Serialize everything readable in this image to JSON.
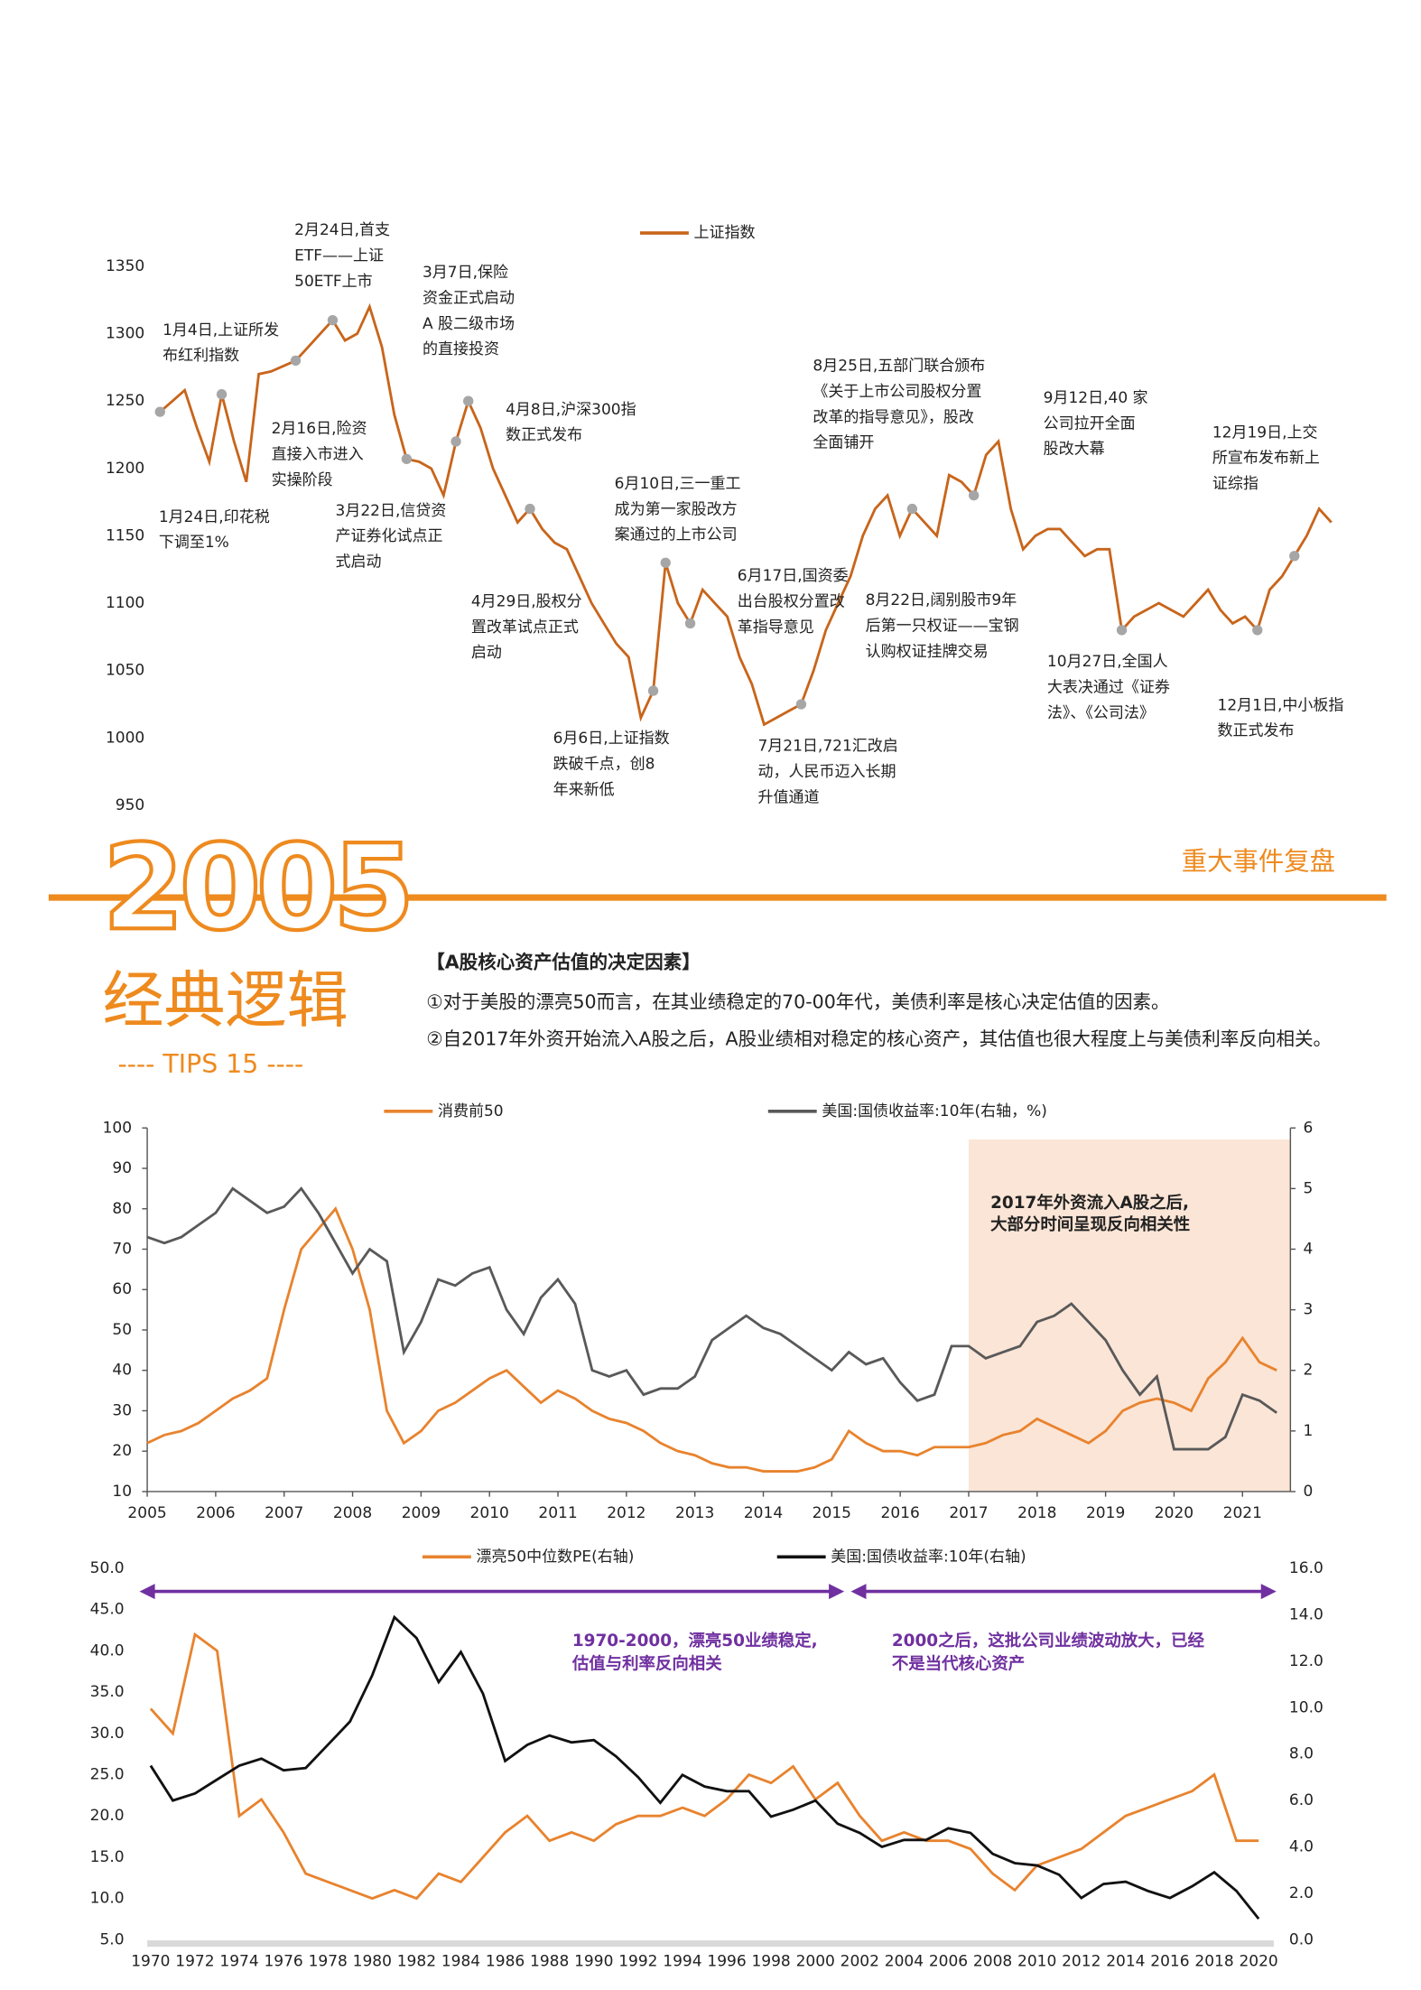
{
  "header": {
    "year": "2005",
    "title": "经典逻辑",
    "tips": "---- TIPS 15 ----",
    "section": "重大事件复盘"
  },
  "tips": {
    "heading": "【A股核心资产估值的决定因素】",
    "points": [
      "①对于美股的漂亮50而言，在其业绩稳定的70-00年代，美债利率是核心决定估值的因素。",
      "②自2017年外资开始流入A股之后，A股业绩相对稳定的核心资产，其估值也很大程度上与美债利率反向相关。"
    ]
  },
  "chart_data": [
    {
      "type": "line",
      "ylim": [
        950,
        1350
      ],
      "yticks": [
        950,
        1000,
        1050,
        1100,
        1150,
        1200,
        1250,
        1300,
        1350
      ],
      "marker_color": "#a6a6a6",
      "series": [
        {
          "name": "上证指数",
          "color": "#c8651b",
          "values": [
            1242,
            1250,
            1258,
            1230,
            1205,
            1255,
            1220,
            1190,
            1270,
            1272,
            1276,
            1280,
            1290,
            1300,
            1310,
            1295,
            1300,
            1320,
            1290,
            1240,
            1207,
            1205,
            1200,
            1180,
            1220,
            1250,
            1230,
            1200,
            1180,
            1160,
            1170,
            1155,
            1145,
            1140,
            1120,
            1100,
            1085,
            1070,
            1060,
            1015,
            1035,
            1130,
            1100,
            1085,
            1110,
            1100,
            1090,
            1060,
            1040,
            1010,
            1015,
            1020,
            1025,
            1050,
            1080,
            1100,
            1120,
            1150,
            1170,
            1180,
            1150,
            1170,
            1160,
            1150,
            1195,
            1190,
            1180,
            1210,
            1220,
            1170,
            1140,
            1150,
            1155,
            1155,
            1145,
            1135,
            1140,
            1140,
            1080,
            1090,
            1095,
            1100,
            1095,
            1090,
            1100,
            1110,
            1095,
            1085,
            1090,
            1080,
            1110,
            1120,
            1135,
            1150,
            1170,
            1160
          ]
        }
      ],
      "annotations": [
        {
          "text": [
            "1月4日,上证所发",
            "布红利指数"
          ]
        },
        {
          "text": [
            "1月24日,印花税",
            "下调至1%"
          ]
        },
        {
          "text": [
            "2月24日,首支",
            "ETF——上证",
            "50ETF上市"
          ]
        },
        {
          "text": [
            "2月16日,险资",
            "直接入市进入",
            "实操阶段"
          ]
        },
        {
          "text": [
            "3月7日,保险",
            "资金正式启动",
            "A 股二级市场",
            "的直接投资"
          ]
        },
        {
          "text": [
            "3月22日,信贷资",
            "产证券化试点正",
            "式启动"
          ]
        },
        {
          "text": [
            "4月8日,沪深300指",
            "数正式发布"
          ]
        },
        {
          "text": [
            "4月29日,股权分",
            "置改革试点正式",
            "启动"
          ]
        },
        {
          "text": [
            "6月6日,上证指数",
            "跌破千点，创8",
            "年来新低"
          ]
        },
        {
          "text": [
            "6月10日,三一重工",
            "成为第一家股改方",
            "案通过的上市公司"
          ]
        },
        {
          "text": [
            "6月17日,国资委",
            "出台股权分置改",
            "革指导意见"
          ]
        },
        {
          "text": [
            "7月21日,721汇改启",
            "动，人民币迈入长期",
            "升值通道"
          ]
        },
        {
          "text": [
            "8月25日,五部门联合颁布",
            "《关于上市公司股权分置",
            "改革的指导意见》，股改",
            "全面铺开"
          ]
        },
        {
          "text": [
            "8月22日,阔别股市9年",
            "后第一只权证——宝钢",
            "认购权证挂牌交易"
          ]
        },
        {
          "text": [
            "9月12日,40 家",
            "公司拉开全面",
            "股改大幕"
          ]
        },
        {
          "text": [
            "10月27日,全国人",
            "大表决通过《证券",
            "法》、《公司法》"
          ]
        },
        {
          "text": [
            "12月19日,上交",
            "所宣布发布新上",
            "证综指"
          ]
        },
        {
          "text": [
            "12月1日,中小板指",
            "数正式发布"
          ]
        }
      ]
    },
    {
      "type": "line",
      "axes": true,
      "x": [
        2005,
        2005.25,
        2005.5,
        2005.75,
        2006,
        2006.25,
        2006.5,
        2006.75,
        2007,
        2007.25,
        2007.5,
        2007.75,
        2008,
        2008.25,
        2008.5,
        2008.75,
        2009,
        2009.25,
        2009.5,
        2009.75,
        2010,
        2010.25,
        2010.5,
        2010.75,
        2011,
        2011.25,
        2011.5,
        2011.75,
        2012,
        2012.25,
        2012.5,
        2012.75,
        2013,
        2013.25,
        2013.5,
        2013.75,
        2014,
        2014.25,
        2014.5,
        2014.75,
        2015,
        2015.25,
        2015.5,
        2015.75,
        2016,
        2016.25,
        2016.5,
        2016.75,
        2017,
        2017.25,
        2017.5,
        2017.75,
        2018,
        2018.25,
        2018.5,
        2018.75,
        2019,
        2019.25,
        2019.5,
        2019.75,
        2020,
        2020.25,
        2020.5,
        2020.75,
        2021,
        2021.25,
        2021.5
      ],
      "xlim": [
        2005,
        2021.7
      ],
      "xticks": [
        2005,
        2006,
        2007,
        2008,
        2009,
        2010,
        2011,
        2012,
        2013,
        2014,
        2015,
        2016,
        2017,
        2018,
        2019,
        2020,
        2021
      ],
      "ylim": [
        10,
        100
      ],
      "yticks": [
        10,
        20,
        30,
        40,
        50,
        60,
        70,
        80,
        90,
        100
      ],
      "y2lim": [
        0,
        6
      ],
      "y2ticks": [
        0,
        1,
        2,
        3,
        4,
        5,
        6
      ],
      "series": [
        {
          "name": "消费前50",
          "color": "#e8832e",
          "values": [
            22,
            24,
            25,
            27,
            30,
            33,
            35,
            38,
            55,
            70,
            75,
            80,
            70,
            55,
            30,
            22,
            25,
            30,
            32,
            35,
            38,
            40,
            36,
            32,
            35,
            33,
            30,
            28,
            27,
            25,
            22,
            20,
            19,
            17,
            16,
            16,
            15,
            15,
            15,
            16,
            18,
            25,
            22,
            20,
            20,
            19,
            21,
            21,
            21,
            22,
            24,
            25,
            28,
            26,
            24,
            22,
            25,
            30,
            32,
            33,
            32,
            30,
            38,
            42,
            48,
            42,
            40
          ]
        },
        {
          "name": "美国:国债收益率:10年(右轴，%)",
          "color": "#595959",
          "axis": "y2",
          "values": [
            4.2,
            4.1,
            4.2,
            4.4,
            4.6,
            5.0,
            4.8,
            4.6,
            4.7,
            5.0,
            4.6,
            4.1,
            3.6,
            4.0,
            3.8,
            2.3,
            2.8,
            3.5,
            3.4,
            3.6,
            3.7,
            3.0,
            2.6,
            3.2,
            3.5,
            3.1,
            2.0,
            1.9,
            2.0,
            1.6,
            1.7,
            1.7,
            1.9,
            2.5,
            2.7,
            2.9,
            2.7,
            2.6,
            2.4,
            2.2,
            2.0,
            2.3,
            2.1,
            2.2,
            1.8,
            1.5,
            1.6,
            2.4,
            2.4,
            2.2,
            2.3,
            2.4,
            2.8,
            2.9,
            3.1,
            2.8,
            2.5,
            2.0,
            1.6,
            1.9,
            0.7,
            0.7,
            0.7,
            0.9,
            1.6,
            1.5,
            1.3
          ]
        }
      ],
      "highlight": {
        "xlim": [
          2017,
          2021.7
        ],
        "color": "#fbe5d6",
        "text": [
          "2017年外资流入A股之后,",
          "大部分时间呈现反向相关性"
        ]
      }
    },
    {
      "type": "line",
      "x": [
        1970,
        1971,
        1972,
        1973,
        1974,
        1975,
        1976,
        1977,
        1978,
        1979,
        1980,
        1981,
        1982,
        1983,
        1984,
        1985,
        1986,
        1987,
        1988,
        1989,
        1990,
        1991,
        1992,
        1993,
        1994,
        1995,
        1996,
        1997,
        1998,
        1999,
        2000,
        2001,
        2002,
        2003,
        2004,
        2005,
        2006,
        2007,
        2008,
        2009,
        2010,
        2011,
        2012,
        2013,
        2014,
        2015,
        2016,
        2017,
        2018,
        2019,
        2020
      ],
      "xlim": [
        1969.5,
        2020.8
      ],
      "xticks": [
        1970,
        1972,
        1974,
        1976,
        1978,
        1980,
        1982,
        1984,
        1986,
        1988,
        1990,
        1992,
        1994,
        1996,
        1998,
        2000,
        2002,
        2004,
        2006,
        2008,
        2010,
        2012,
        2014,
        2016,
        2018,
        2020
      ],
      "ylim": [
        5,
        50
      ],
      "yticks": [
        {
          "value": 5,
          "label": "5.0"
        },
        {
          "value": 10,
          "label": "10.0"
        },
        {
          "value": 15,
          "label": "15.0"
        },
        {
          "value": 20,
          "label": "20.0"
        },
        {
          "value": 25,
          "label": "25.0"
        },
        {
          "value": 30,
          "label": "30.0"
        },
        {
          "value": 35,
          "label": "35.0"
        },
        {
          "value": 40,
          "label": "40.0"
        },
        {
          "value": 45,
          "label": "45.0"
        },
        {
          "value": 50,
          "label": "50.0"
        }
      ],
      "y2lim": [
        0,
        16
      ],
      "y2ticks": [
        {
          "value": 0,
          "label": "0.0"
        },
        {
          "value": 2,
          "label": "2.0"
        },
        {
          "value": 4,
          "label": "4.0"
        },
        {
          "value": 6,
          "label": "6.0"
        },
        {
          "value": 8,
          "label": "8.0"
        },
        {
          "value": 10,
          "label": "10.0"
        },
        {
          "value": 12,
          "label": "12.0"
        },
        {
          "value": 14,
          "label": "14.0"
        },
        {
          "value": 16,
          "label": "16.0"
        }
      ],
      "series": [
        {
          "name": "漂亮50中位数PE(右轴)",
          "color": "#e8832e",
          "values": [
            33,
            30,
            42,
            40,
            20,
            22,
            18,
            13,
            12,
            11,
            10,
            11,
            10,
            13,
            12,
            15,
            18,
            20,
            17,
            18,
            17,
            19,
            20,
            20,
            21,
            20,
            22,
            25,
            24,
            26,
            22,
            24,
            20,
            17,
            18,
            17,
            17,
            16,
            13,
            11,
            14,
            15,
            16,
            18,
            20,
            21,
            22,
            23,
            25,
            17,
            17
          ]
        },
        {
          "name": "美国:国债收益率:10年(右轴)",
          "color": "#111111",
          "axis": "y2",
          "values": [
            7.5,
            6.0,
            6.3,
            6.9,
            7.5,
            7.8,
            7.3,
            7.4,
            8.4,
            9.4,
            11.4,
            13.9,
            13.0,
            11.1,
            12.4,
            10.6,
            7.7,
            8.4,
            8.8,
            8.5,
            8.6,
            7.9,
            7.0,
            5.9,
            7.1,
            6.6,
            6.4,
            6.4,
            5.3,
            5.6,
            6.0,
            5.0,
            4.6,
            4.0,
            4.3,
            4.3,
            4.8,
            4.6,
            3.7,
            3.3,
            3.2,
            2.8,
            1.8,
            2.4,
            2.5,
            2.1,
            1.8,
            2.3,
            2.9,
            2.1,
            0.9
          ]
        }
      ],
      "annotation_color": "#7030a0",
      "arrows": [
        {
          "xlim": [
            1969.5,
            2001.3
          ],
          "text": [
            "1970-2000，漂亮50业绩稳定,",
            "估值与利率反向相关"
          ]
        },
        {
          "xlim": [
            2001.6,
            2020.8
          ],
          "text": [
            "2000之后，这批公司业绩波动放大，已经",
            "不是当代核心资产"
          ]
        }
      ]
    }
  ]
}
